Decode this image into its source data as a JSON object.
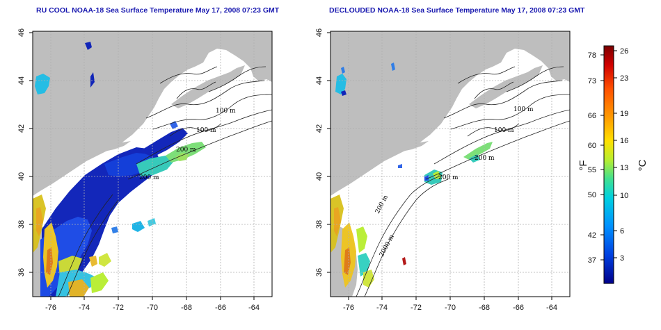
{
  "panels": [
    {
      "title": "RU COOL NOAA-18 Sea Surface Temperature May 17, 2008 07:23 GMT",
      "contour_labels": [
        "100 m",
        "100 m",
        "200 m",
        "200 m"
      ]
    },
    {
      "title": "DECLOUDED NOAA-18 Sea Surface Temperature May 17, 2008 07:23 GMT",
      "contour_labels": [
        "100 m",
        "100 m",
        "200 m",
        "200 m",
        "200 m",
        "2000 m"
      ]
    }
  ],
  "x_ticks": [
    "-76",
    "-74",
    "-72",
    "-70",
    "-68",
    "-66",
    "-64"
  ],
  "y_ticks": [
    "36",
    "38",
    "40",
    "42",
    "44",
    "46"
  ],
  "colorbar": {
    "unit_f": "°F",
    "unit_c": "°C",
    "f_ticks": [
      "78",
      "73",
      "66",
      "60",
      "55",
      "50",
      "42",
      "37"
    ],
    "c_ticks": [
      "26",
      "23",
      "19",
      "16",
      "13",
      "10",
      "6",
      "3"
    ],
    "colors": [
      "#7a0000",
      "#d00000",
      "#ff5000",
      "#ff9a00",
      "#ffe000",
      "#b8ee30",
      "#40e090",
      "#00d0e0",
      "#0090ff",
      "#0040e0",
      "#00008a"
    ]
  },
  "colors": {
    "land": "#bebebe",
    "water": "#ffffff",
    "title": "#1a1ab0",
    "grid": "#b0b0b0"
  }
}
